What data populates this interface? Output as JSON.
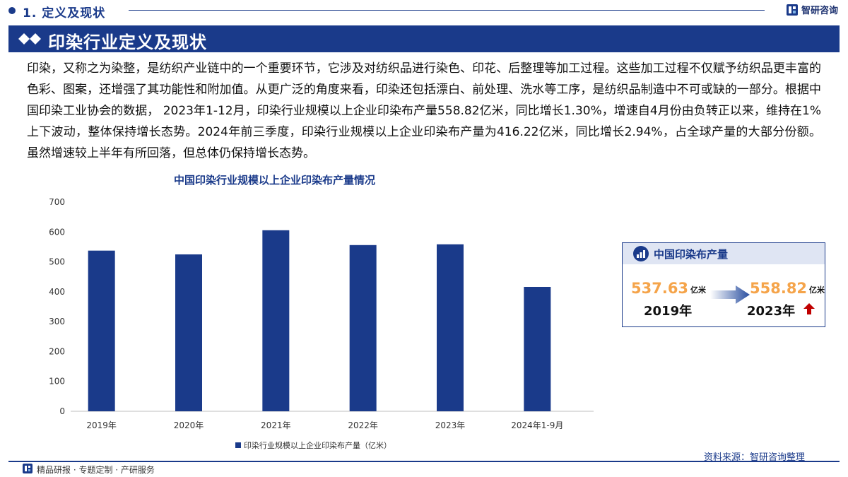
{
  "header": {
    "section_label": "1. 定义及现状",
    "brand_name": "智研咨询"
  },
  "banner": {
    "title": "印染行业定义及现状"
  },
  "intro_text": "印染，又称之为染整，是纺织产业链中的一个重要环节，它涉及对纺织品进行染色、印花、后整理等加工过程。这些加工过程不仅赋予纺织品更丰富的色彩、图案，还增强了其功能性和附加值。从更广泛的角度来看，印染还包括漂白、前处理、洗水等工序，是纺织品制造中不可或缺的一部分。根据中国印染工业协会的数据， 2023年1-12月，印染行业规模以上企业印染布产量558.82亿米，同比增长1.30%，增速自4月份由负转正以来，维持在1%上下波动，整体保持增长态势。2024年前三季度，印染行业规模以上企业印染布产量为416.22亿米，同比增长2.94%，占全球产量的大部分份额。虽然增速较上半年有所回落，但总体仍保持增长态势。",
  "chart_data": {
    "type": "bar",
    "title": "中国印染行业规模以上企业印染布产量情况",
    "categories": [
      "2019年",
      "2020年",
      "2021年",
      "2022年",
      "2023年",
      "2024年1-9月"
    ],
    "series": [
      {
        "name": "印染行业规模以上企业印染布产量（亿米）",
        "values": [
          537.63,
          525.03,
          605.81,
          556.22,
          558.82,
          416.22
        ]
      }
    ],
    "ylim": [
      0,
      700
    ],
    "yticks": [
      "0",
      "100",
      "200",
      "300",
      "400",
      "500",
      "600",
      "700"
    ],
    "grid": false,
    "legend_position": "bottom",
    "bar_color": "#1a3a8a"
  },
  "card": {
    "title": "中国印染布产量",
    "from_value": "537.63",
    "from_unit": "亿米",
    "from_year": "2019年",
    "to_value": "558.82",
    "to_unit": "亿米",
    "to_year": "2023年",
    "accent_color": "#f5a44a",
    "up_color": "#c00000"
  },
  "footer": {
    "source": "资料来源：智研咨询整理",
    "tagline": "精品研报 · 专题定制 · 产研服务"
  },
  "colors": {
    "primary": "#1a3a8a"
  }
}
